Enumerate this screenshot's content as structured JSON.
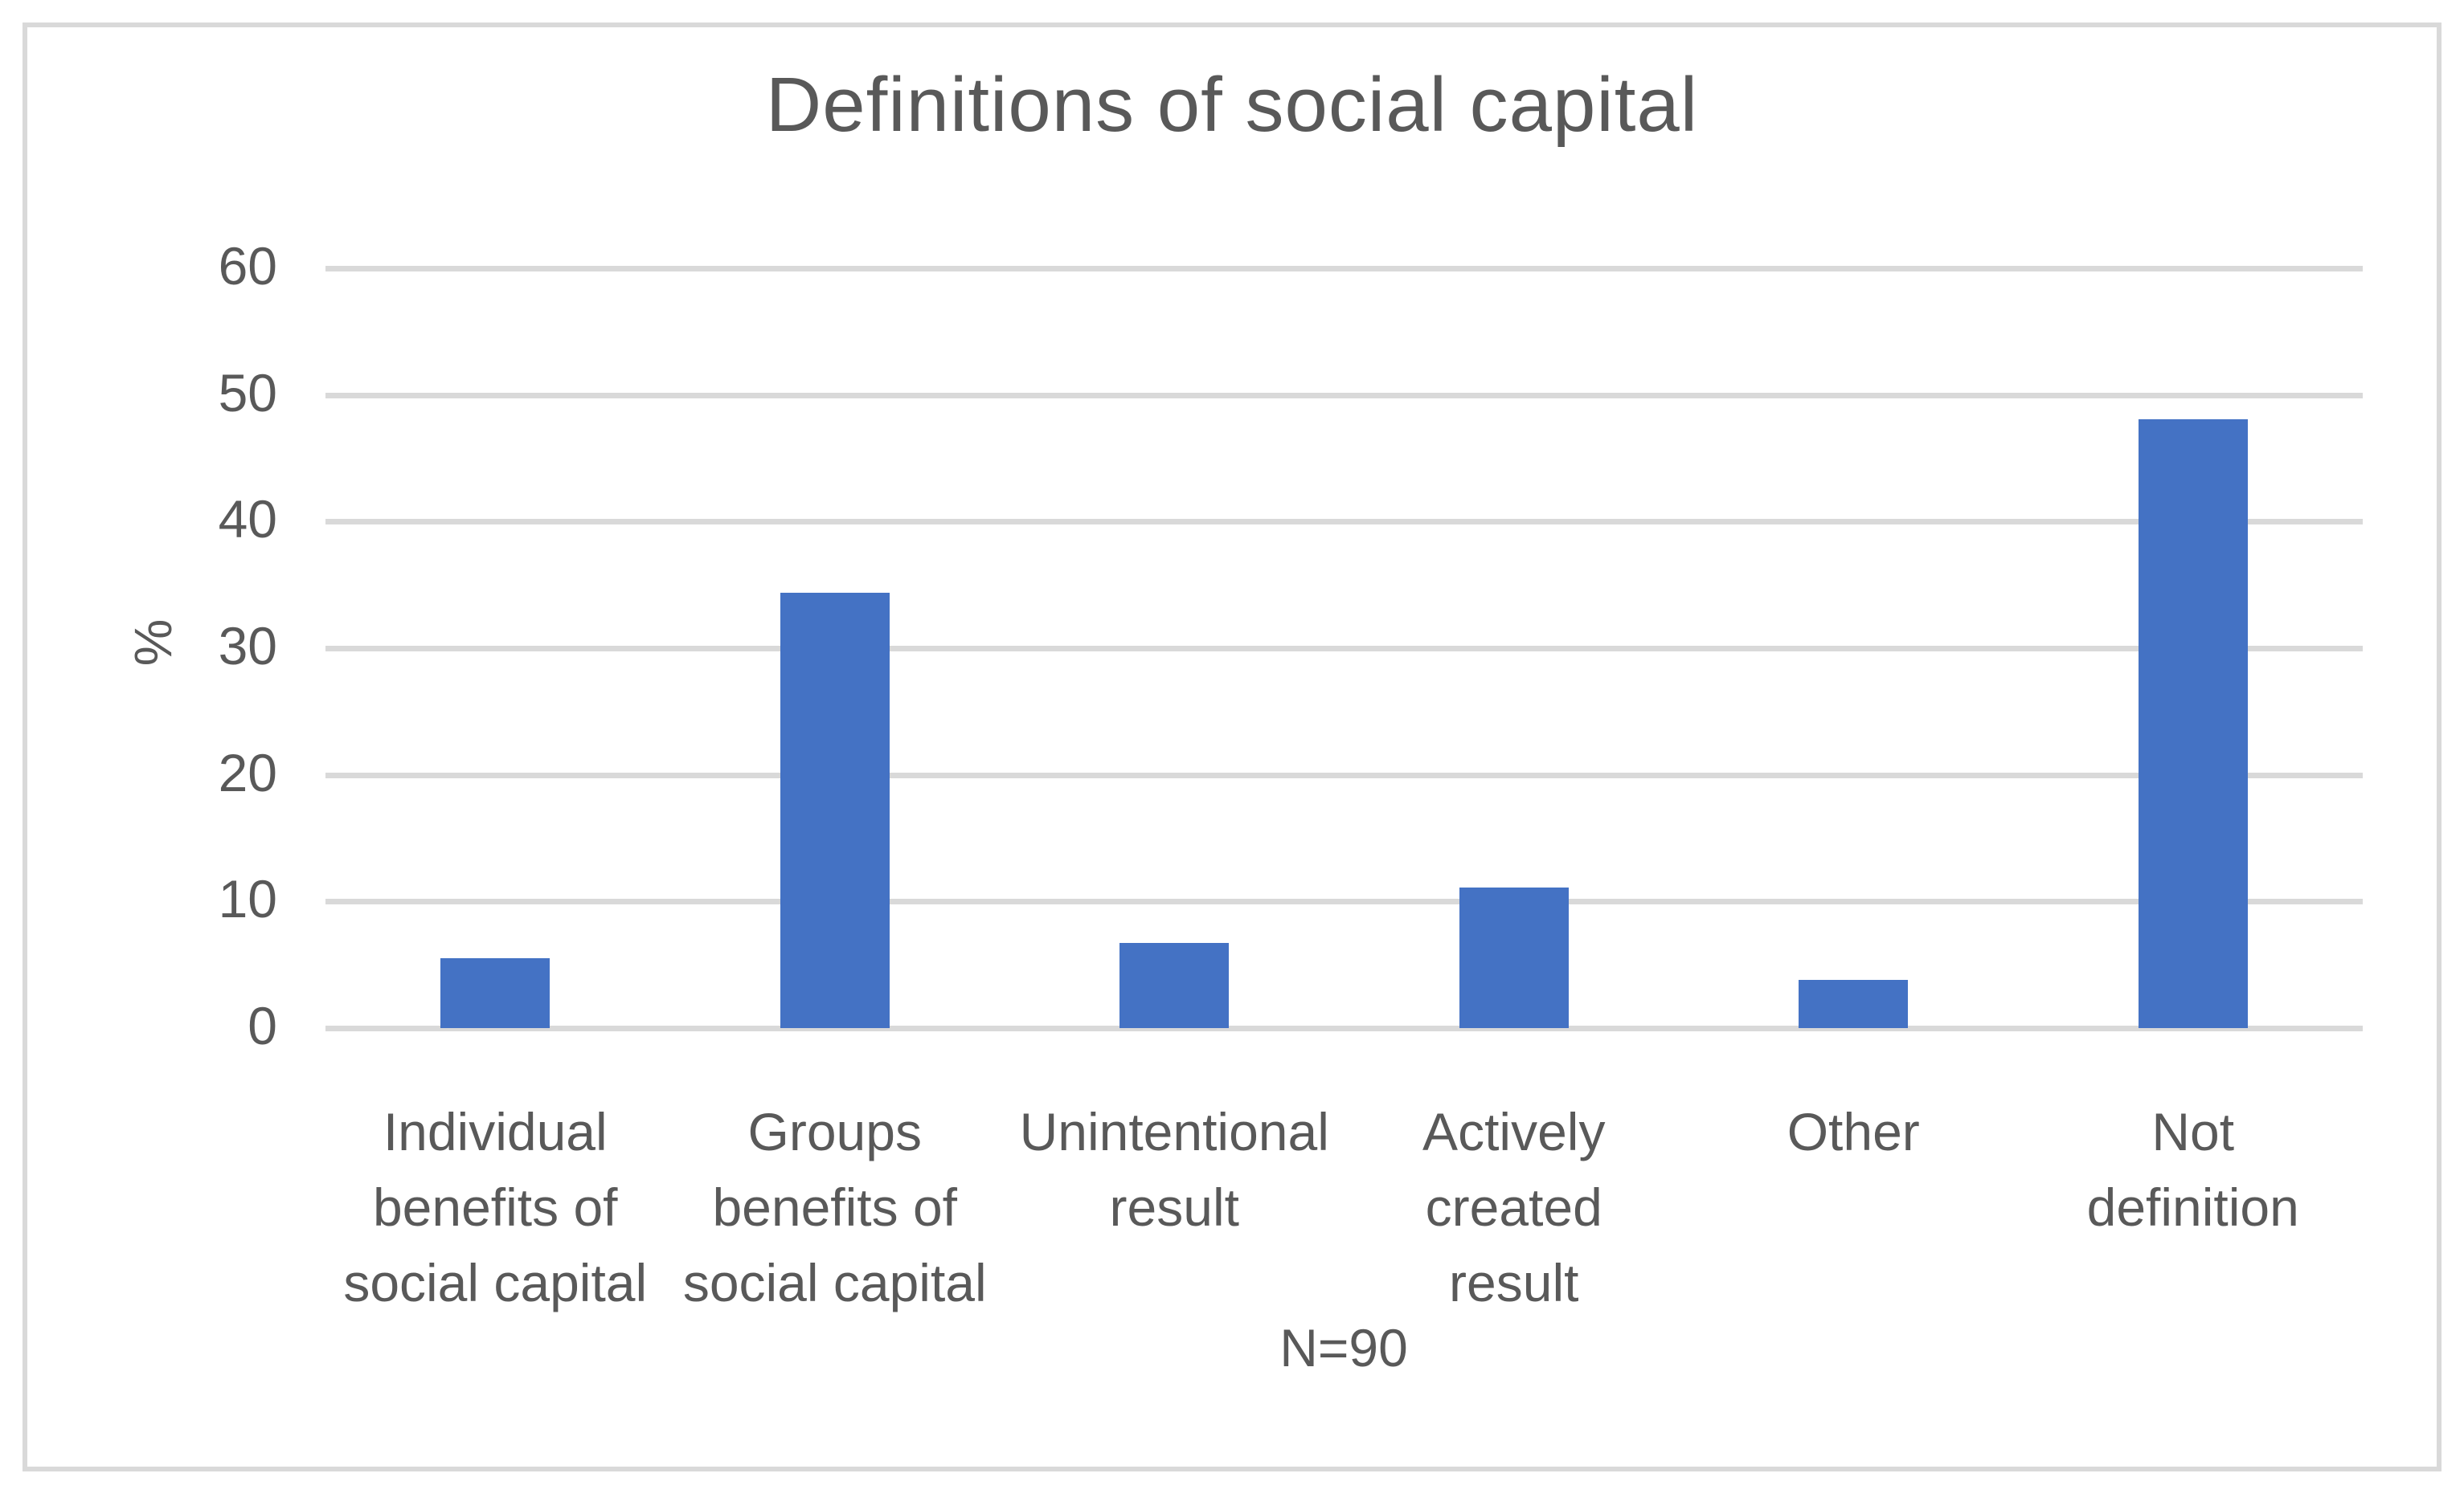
{
  "chart_data": {
    "type": "bar",
    "title": "Definitions of social capital",
    "categories": [
      "Individual benefits of social capital",
      "Groups benefits of social capital",
      "Unintentional result",
      "Actively created result",
      "Other",
      "Not definition"
    ],
    "category_lines": [
      [
        "Individual",
        "benefits of",
        "social capital"
      ],
      [
        "Groups",
        "benefits of",
        "social capital"
      ],
      [
        "Unintentional",
        "result"
      ],
      [
        "Actively",
        "created",
        "result"
      ],
      [
        "Other"
      ],
      [
        "Not",
        "definition"
      ]
    ],
    "values": [
      5.5,
      34.4,
      6.7,
      11.1,
      3.8,
      48.1
    ],
    "xlabel": "",
    "ylabel": "%",
    "note": "N=90",
    "y_ticks": [
      0,
      10,
      20,
      30,
      40,
      50,
      60
    ],
    "ylim": [
      0,
      60
    ],
    "grid": true,
    "legend": "none",
    "bar_color": "#4472C4",
    "gridline_color": "#D9D9D9",
    "text_color": "#595959",
    "border_color": "#D9D9D9"
  }
}
